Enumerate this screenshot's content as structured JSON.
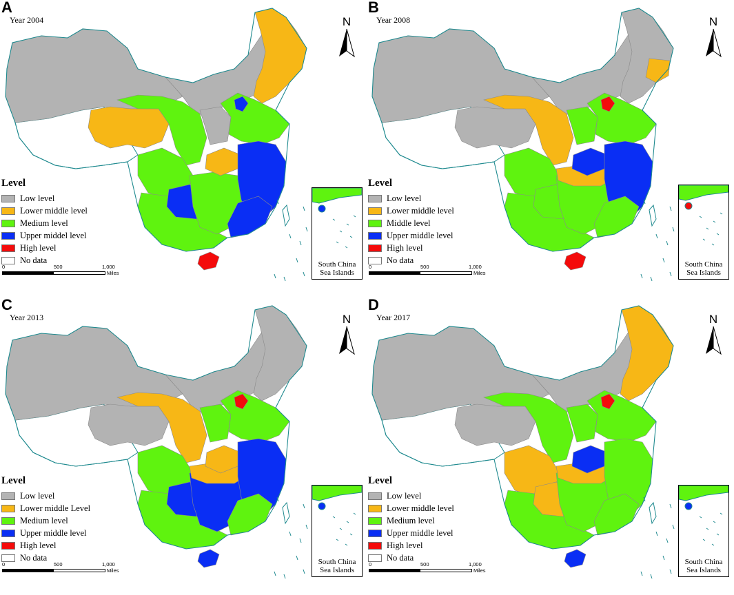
{
  "colors": {
    "low": "#b3b3b3",
    "lower_middle": "#f7b716",
    "medium": "#5ff30f",
    "upper_middle": "#0a2ef4",
    "high": "#f40b0b",
    "no_data": "#ffffff",
    "coast": "#1f8a8f"
  },
  "north_label": "N",
  "scale": {
    "labels": [
      "0",
      "500",
      "1,000"
    ],
    "unit": "Miles"
  },
  "inset_label_1": "South China",
  "inset_label_2": "Sea Islands",
  "legend_title": "Level",
  "panels": [
    {
      "letter": "A",
      "year": "Year 2004",
      "legend": [
        "Low level",
        "Lower middle level",
        "Medium level",
        "Upper middel level",
        "High level",
        "No data"
      ],
      "regions": {
        "northeast": "lower_middle",
        "inner_mongolia": "low",
        "xinjiang": "low",
        "tibet": "no_data",
        "qinghai": "lower_middle",
        "gansu_ningxia_shaanxi": "medium",
        "shanxi": "low",
        "beijing_tianjin": "upper_middle",
        "hebei_shandong": "medium",
        "henan": "lower_middle",
        "east_coast": "upper_middle",
        "sichuan": "medium",
        "guizhou": "upper_middle",
        "central_south": "medium",
        "southeast_coast": "upper_middle",
        "hainan": "high",
        "south_sea": "upper_middle"
      }
    },
    {
      "letter": "B",
      "year": "Year 2008",
      "legend": [
        "Low level",
        "Lower middle level",
        "Middle level",
        "Upper middle level",
        "High level",
        "No data"
      ],
      "regions": {
        "northeast": "low",
        "northeast_strip": "lower_middle",
        "inner_mongolia": "low",
        "xinjiang": "low",
        "tibet": "no_data",
        "qinghai": "low",
        "gansu_ningxia_shaanxi": "lower_middle",
        "shanxi": "medium",
        "beijing_tianjin": "high",
        "hebei_shandong": "medium",
        "henan": "upper_middle",
        "east_coast": "upper_middle",
        "hubei": "lower_middle",
        "sichuan": "medium",
        "guizhou": "medium",
        "central_south": "medium",
        "southeast_coast": "medium",
        "hainan": "high",
        "south_sea": "high"
      }
    },
    {
      "letter": "C",
      "year": "Year 2013",
      "legend": [
        "Low level",
        "Lower middle Level",
        "Medium level",
        "Upper middle level",
        "High level",
        "No data"
      ],
      "regions": {
        "northeast": "low",
        "inner_mongolia": "low",
        "xinjiang": "low",
        "tibet": "no_data",
        "qinghai": "low",
        "gansu_ningxia_shaanxi": "lower_middle",
        "shanxi": "medium",
        "beijing_tianjin": "high",
        "hebei_shandong": "medium",
        "henan": "lower_middle",
        "east_coast": "upper_middle",
        "hubei": "lower_middle",
        "sichuan": "medium",
        "guizhou": "upper_middle",
        "central_south": "upper_middle",
        "southeast_coast": "medium",
        "hainan": "upper_middle",
        "south_sea": "upper_middle"
      }
    },
    {
      "letter": "D",
      "year": "Year 2017",
      "legend": [
        "Low level",
        "Lower middle level",
        "Medium level",
        "Upper middle level",
        "High level",
        "No data"
      ],
      "regions": {
        "northeast": "lower_middle",
        "inner_mongolia": "low",
        "xinjiang": "low",
        "tibet": "no_data",
        "qinghai": "low",
        "gansu_ningxia_shaanxi": "medium",
        "shanxi": "medium",
        "beijing_tianjin": "high",
        "hebei_shandong": "medium",
        "henan": "upper_middle",
        "east_coast": "medium",
        "hubei": "lower_middle",
        "sichuan": "lower_middle",
        "guizhou": "lower_middle",
        "central_south": "medium",
        "southeast_coast": "medium",
        "hainan": "upper_middle",
        "south_sea": "upper_middle"
      }
    }
  ]
}
